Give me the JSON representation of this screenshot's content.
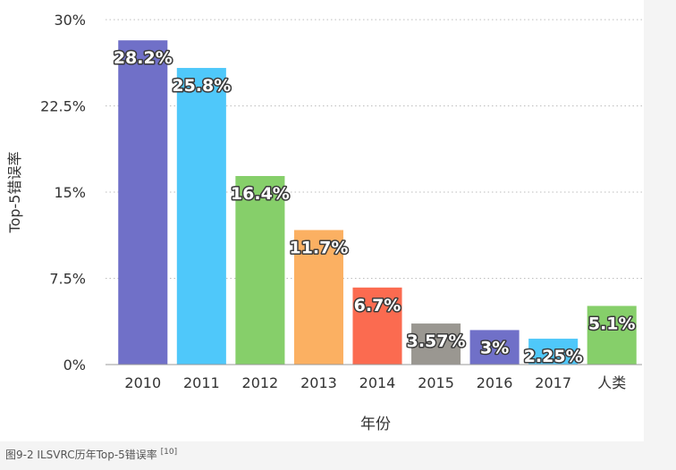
{
  "caption": {
    "text": "图9-2 ILSVRC历年Top-5错误率",
    "ref": "[10]"
  },
  "chart_data": {
    "type": "bar",
    "categories": [
      "2010",
      "2011",
      "2012",
      "2013",
      "2014",
      "2015",
      "2016",
      "2017",
      "人类"
    ],
    "values": [
      28.2,
      25.8,
      16.4,
      11.7,
      6.7,
      3.57,
      3,
      2.25,
      5.1
    ],
    "value_labels": [
      "28.2%",
      "25.8%",
      "16.4%",
      "11.7%",
      "6.7%",
      "3.57%",
      "3%",
      "2.25%",
      "5.1%"
    ],
    "bar_colors": [
      "#7070c8",
      "#4fc8fa",
      "#86cf6a",
      "#fbb062",
      "#fb6b50",
      "#9a9791",
      "#7070c8",
      "#4fc8fa",
      "#86cf6a"
    ],
    "xlabel": "年份",
    "ylabel": "Top-5错误率",
    "ylim": [
      0,
      30
    ],
    "yticks": [
      "0%",
      "7.5%",
      "15%",
      "22.5%",
      "30%"
    ],
    "ytick_values": [
      0,
      7.5,
      15,
      22.5,
      30
    ],
    "grid": "horizontal-dotted"
  }
}
